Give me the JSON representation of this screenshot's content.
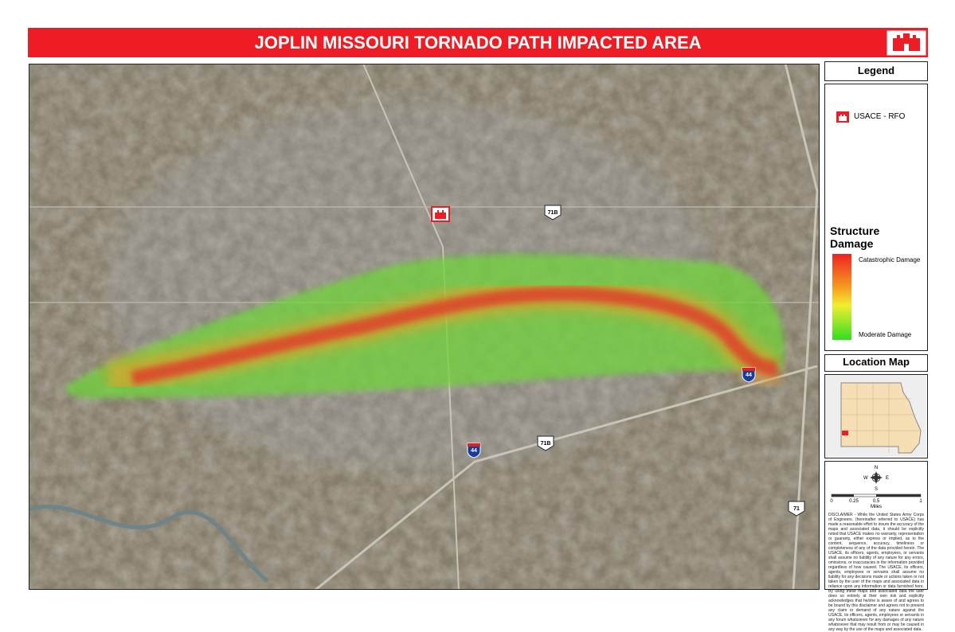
{
  "header": {
    "title": "JOPLIN MISSOURI TORNADO PATH IMPACTED AREA"
  },
  "legend": {
    "title": "Legend",
    "office": "USACE - RFO",
    "damage": {
      "title": "Structure Damage",
      "high": "Catastrophic Damage",
      "low": "Moderate Damage"
    }
  },
  "location_map": {
    "title": "Location Map"
  },
  "compass": {
    "n": "N",
    "s": "S",
    "e": "E",
    "w": "W"
  },
  "scale": {
    "labels": [
      "0",
      "0.25",
      "0.5",
      "1"
    ],
    "unit": "Miles"
  },
  "map": {
    "shields": [
      "71B",
      "44",
      "44",
      "71B",
      "71"
    ]
  },
  "disclaimer": "DISCLAIMER - While the United States Army Corps of Engineers, (hereinafter referred to USACE) has made a reasonable effort to insure the accuracy of the maps and associated data, it should be explicitly noted that USACE makes no warranty, representation or guaranty, either express or implied, as to the content, sequence, accuracy, timeliness or completeness of any of the data provided herein. The USACE, its officers, agents, employees, or servants shall assume no liability of any nature for any errors, omissions, or inaccuracies in the information provided regardless of how caused. The USACE, its officers, agents, employees or servants shall assume no liability for any decisions made or actions taken or not taken by the user of the maps and associated data in reliance upon any information or data furnished here. By using these maps and associated data the user does so entirely at their own risk and explicitly acknowledges that he/she is aware of and agrees to be bound by this disclaimer and agrees not to present any claim or demand of any nature against the USACE, its officers, agents, employees or servants in any forum whatsoever for any damages of any nature whatsoever that may result from or may be caused in any way by the use of the maps and associated data."
}
